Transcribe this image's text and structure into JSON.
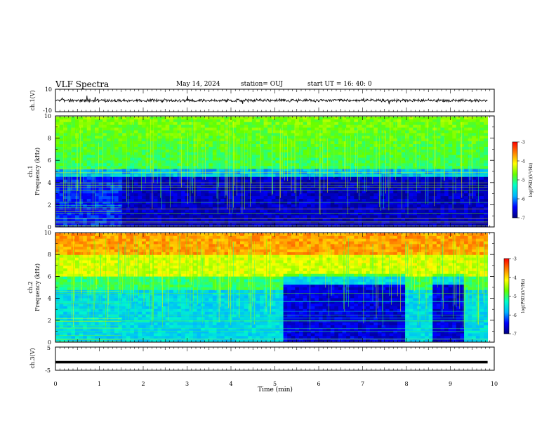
{
  "header": {
    "title": "VLF Spectra",
    "date": "May 14, 2024",
    "station": "station= OUJ",
    "start_ut": "start  UT =   16: 40: 0"
  },
  "chart_data": [
    {
      "type": "line",
      "name": "ch1-waveform",
      "ylabel": "ch.1(V)",
      "ylim": [
        -10,
        10
      ],
      "yticks": [
        "10",
        "-10"
      ],
      "xlim": [
        0,
        10
      ],
      "description_level": -1
    },
    {
      "type": "heatmap",
      "name": "ch1-spectrogram",
      "ylabel": "ch.1\nFrequency  (kHz)",
      "ylabel_lines": [
        "ch.1",
        "Frequency  (kHz)"
      ],
      "ylim": [
        0,
        10
      ],
      "yticks": [
        "0",
        "2",
        "4",
        "6",
        "8",
        "10"
      ],
      "xlim": [
        0,
        10
      ],
      "data_extent_min": 9.85,
      "colorbar": {
        "label": "log(PSD)(V²/Hz)",
        "range": [
          -7,
          -3
        ],
        "ticks": [
          "-3",
          "-4",
          "-5",
          "-6",
          "-7"
        ]
      }
    },
    {
      "type": "heatmap",
      "name": "ch2-spectrogram",
      "ylabel_lines": [
        "ch.2",
        "Frequency  (kHz)"
      ],
      "ylim": [
        0,
        10
      ],
      "yticks": [
        "0",
        "2",
        "4",
        "6",
        "8",
        "10"
      ],
      "xlim": [
        0,
        10
      ],
      "data_extent_min": 9.85,
      "colorbar": {
        "label": "log(PSD)(V²/Hz)",
        "range": [
          -7,
          -3
        ],
        "ticks": [
          "-3",
          "-4",
          "-5",
          "-6",
          "-7"
        ]
      }
    },
    {
      "type": "line",
      "name": "ch3-waveform",
      "ylabel": "ch.3(V)",
      "ylim": [
        -5,
        5
      ],
      "yticks": [
        "5",
        "-5"
      ],
      "xlim": [
        0,
        10
      ],
      "constant_value": -1.5
    }
  ],
  "xaxis": {
    "label": "Time  (min)",
    "ticks": [
      "0",
      "1",
      "2",
      "3",
      "4",
      "5",
      "6",
      "7",
      "8",
      "9",
      "10"
    ]
  },
  "colors": {
    "colormap": [
      "#000080",
      "#0000ff",
      "#00b4ff",
      "#00ffc8",
      "#64ff00",
      "#ffff00",
      "#ff8000",
      "#ff0000",
      "#ffffff"
    ]
  }
}
